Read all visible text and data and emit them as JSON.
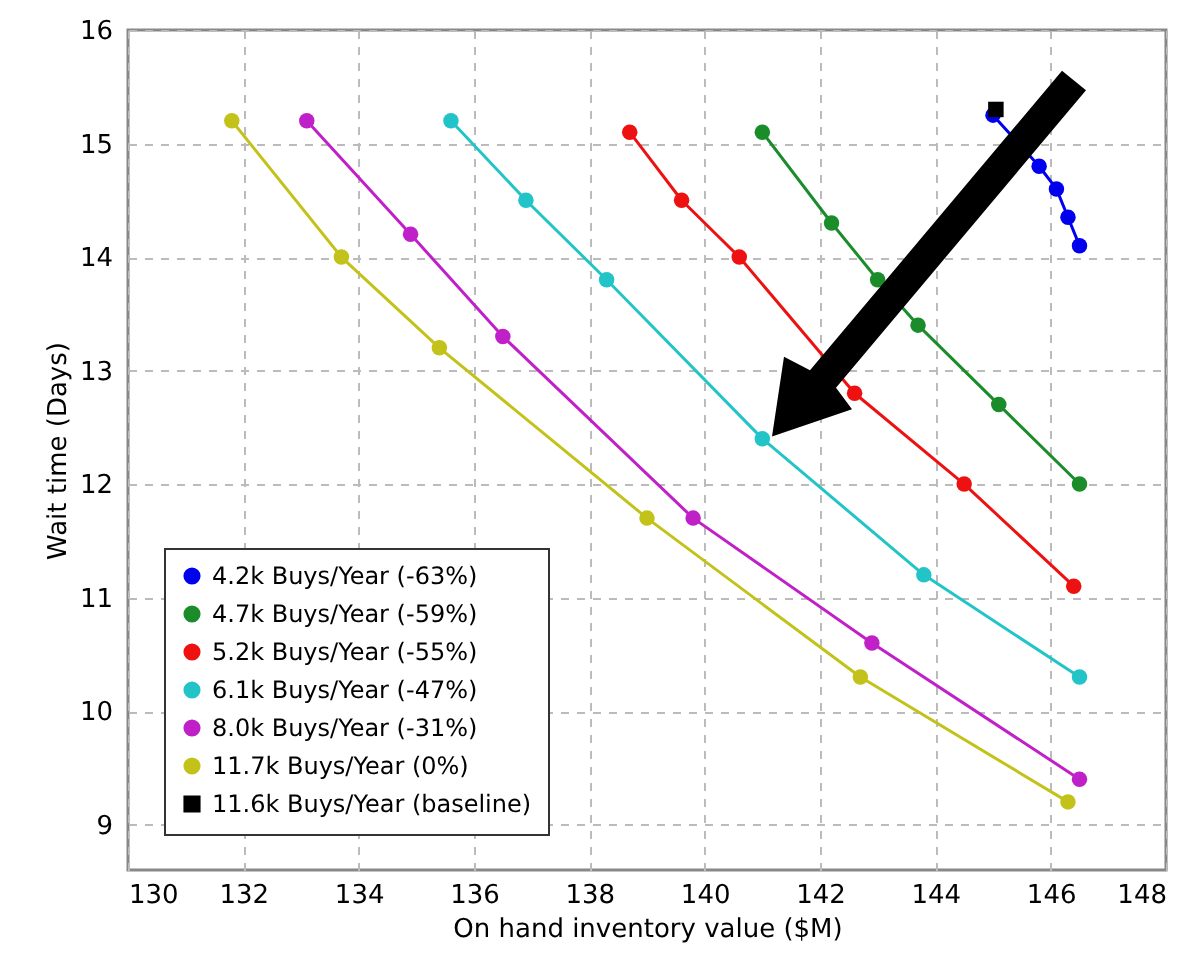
{
  "chart_data": {
    "type": "line",
    "xlabel": "On hand inventory value ($M)",
    "ylabel": "Wait time (Days)",
    "xlim": [
      130,
      148
    ],
    "xticks": [
      130,
      132,
      134,
      136,
      138,
      140,
      142,
      144,
      146,
      148
    ],
    "ylim": [
      8.6,
      16
    ],
    "yticks": [
      9,
      10,
      11,
      12,
      13,
      14,
      15,
      16
    ],
    "grid": true,
    "legend": "bottom left",
    "marker": "circle",
    "line_style": "solid",
    "series": [
      {
        "name": "4.2k Buys/Year (-63%)",
        "color": "#0000ee",
        "x": [
          145.0,
          145.8,
          146.1,
          146.3,
          146.5
        ],
        "values": [
          15.25,
          14.8,
          14.6,
          14.35,
          14.1
        ]
      },
      {
        "name": "4.7k Buys/Year (-59%)",
        "color": "#1a8c2a",
        "x": [
          141.0,
          142.2,
          143.0,
          143.7,
          145.1,
          146.5
        ],
        "values": [
          15.1,
          14.3,
          13.8,
          13.4,
          12.7,
          12.0
        ]
      },
      {
        "name": "5.2k Buys/Year (-55%)",
        "color": "#ee1111",
        "x": [
          138.7,
          139.6,
          140.6,
          142.6,
          144.5,
          146.4
        ],
        "values": [
          15.1,
          14.5,
          14.0,
          12.8,
          12.0,
          11.1
        ]
      },
      {
        "name": "6.1k Buys/Year (-47%)",
        "color": "#22c4c8",
        "x": [
          135.6,
          136.9,
          138.3,
          141.0,
          143.8,
          146.5
        ],
        "values": [
          15.2,
          14.5,
          13.8,
          12.4,
          11.2,
          10.3
        ]
      },
      {
        "name": "8.0k Buys/Year (-31%)",
        "color": "#c020c8",
        "x": [
          133.1,
          134.9,
          136.5,
          139.8,
          142.9,
          146.5
        ],
        "values": [
          15.2,
          14.2,
          13.3,
          11.7,
          10.6,
          9.4
        ]
      },
      {
        "name": "11.7k Buys/Year (0%)",
        "color": "#c2c21a",
        "x": [
          131.8,
          133.7,
          135.4,
          139.0,
          142.7,
          146.3
        ],
        "values": [
          15.2,
          14.0,
          13.2,
          11.7,
          10.3,
          9.2
        ]
      },
      {
        "name": "11.6k Buys/Year (baseline)",
        "color": "#000000",
        "type": "scatter",
        "marker": "square",
        "x": [
          145.05
        ],
        "values": [
          15.3
        ]
      }
    ]
  }
}
